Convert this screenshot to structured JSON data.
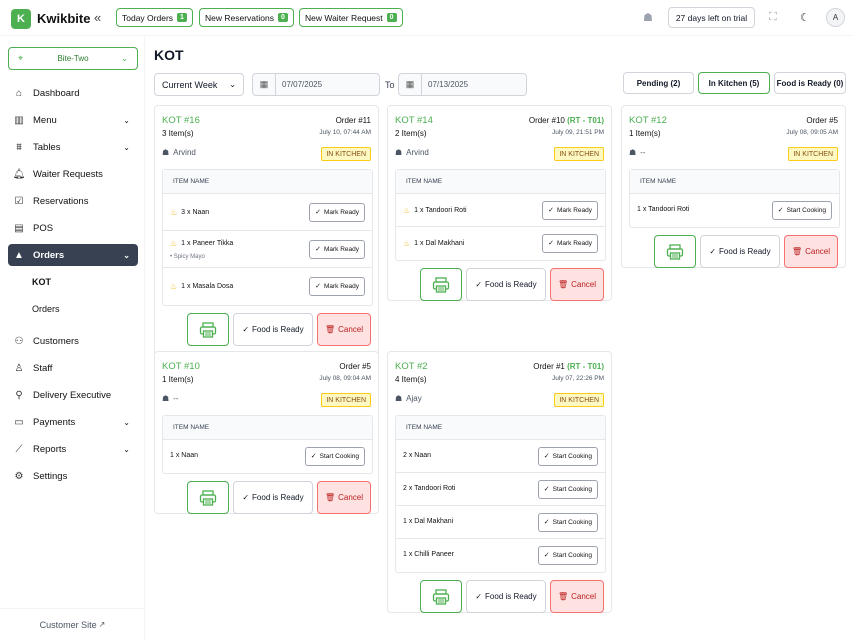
{
  "app": {
    "brand": "Kwikbite",
    "logo_icon": "kwikbite-logo-icon",
    "accent": "#4caf50"
  },
  "topbar": {
    "today_orders": {
      "label": "Today Orders",
      "count": "1"
    },
    "new_reservations": {
      "label": "New Reservations",
      "count": "0"
    },
    "new_waiter_request": {
      "label": "New Waiter Request",
      "count": "0"
    },
    "trial": "27 days left on trial",
    "avatar": "A"
  },
  "sidebar": {
    "branch": "Bite-Two",
    "items": [
      {
        "label": "Dashboard",
        "icon": "home-icon"
      },
      {
        "label": "Menu",
        "icon": "menu-book-icon"
      },
      {
        "label": "Tables",
        "icon": "table-icon"
      },
      {
        "label": "Waiter Requests",
        "icon": "bell-icon"
      },
      {
        "label": "Reservations",
        "icon": "calendar-check-icon"
      },
      {
        "label": "POS",
        "icon": "pos-icon"
      },
      {
        "label": "Orders",
        "icon": "orders-icon"
      },
      {
        "label": "Customers",
        "icon": "users-icon"
      },
      {
        "label": "Staff",
        "icon": "staff-icon"
      },
      {
        "label": "Delivery Executive",
        "icon": "delivery-icon"
      },
      {
        "label": "Payments",
        "icon": "wallet-icon"
      },
      {
        "label": "Reports",
        "icon": "chart-icon"
      },
      {
        "label": "Settings",
        "icon": "gear-icon"
      }
    ],
    "sub_items": [
      "KOT",
      "Orders"
    ],
    "customer_site": "Customer Site"
  },
  "page": {
    "title": "KOT",
    "period": "Current Week",
    "date_from": "07/07/2025",
    "to_label": "To",
    "date_to": "07/13/2025",
    "tabs": [
      "Pending (2)",
      "In Kitchen (5)",
      "Food is Ready (0)"
    ]
  },
  "table_header": "ITEM NAME",
  "actions": {
    "ready": "Food is Ready",
    "cancel": "Cancel"
  },
  "kots": [
    {
      "id": "KOT #16",
      "order": "Order #11",
      "table": "",
      "items": "3 Item(s)",
      "time": "July 10, 07:44 AM",
      "waiter": "Arvind",
      "status": "IN KITCHEN",
      "rows": [
        {
          "name": "3 x Naan",
          "modifier": "",
          "action": "Mark Ready"
        },
        {
          "name": "1 x Paneer Tikka",
          "modifier": "• Spicy Mayo",
          "action": "Mark Ready"
        },
        {
          "name": "1 x Masala Dosa",
          "modifier": "",
          "action": "Mark Ready"
        }
      ]
    },
    {
      "id": "KOT #14",
      "order": "Order #10",
      "table": "(RT - T01)",
      "items": "2 Item(s)",
      "time": "July 09, 21:51 PM",
      "waiter": "Arvind",
      "status": "IN KITCHEN",
      "rows": [
        {
          "name": "1 x Tandoori Roti",
          "modifier": "",
          "action": "Mark Ready"
        },
        {
          "name": "1 x Dal Makhani",
          "modifier": "",
          "action": "Mark Ready"
        }
      ]
    },
    {
      "id": "KOT #12",
      "order": "Order #5",
      "table": "",
      "items": "1 Item(s)",
      "time": "July 08, 09:05 AM",
      "waiter": "--",
      "status": "IN KITCHEN",
      "rows": [
        {
          "name": "1 x Tandoori Roti",
          "modifier": "",
          "action": "Start Cooking"
        }
      ]
    },
    {
      "id": "KOT #10",
      "order": "Order #5",
      "table": "",
      "items": "1 Item(s)",
      "time": "July 08, 09:04 AM",
      "waiter": "--",
      "status": "IN KITCHEN",
      "rows": [
        {
          "name": "1 x Naan",
          "modifier": "",
          "action": "Start Cooking"
        }
      ]
    },
    {
      "id": "KOT #2",
      "order": "Order #1",
      "table": "(RT - T01)",
      "items": "4 Item(s)",
      "time": "July 07, 22:26 PM",
      "waiter": "Ajay",
      "status": "IN KITCHEN",
      "rows": [
        {
          "name": "2 x Naan",
          "modifier": "",
          "action": "Start Cooking"
        },
        {
          "name": "2 x Tandoori Roti",
          "modifier": "",
          "action": "Start Cooking"
        },
        {
          "name": "1 x Dal Makhani",
          "modifier": "",
          "action": "Start Cooking"
        },
        {
          "name": "1 x Chilli Paneer",
          "modifier": "",
          "action": "Start Cooking"
        }
      ]
    }
  ]
}
